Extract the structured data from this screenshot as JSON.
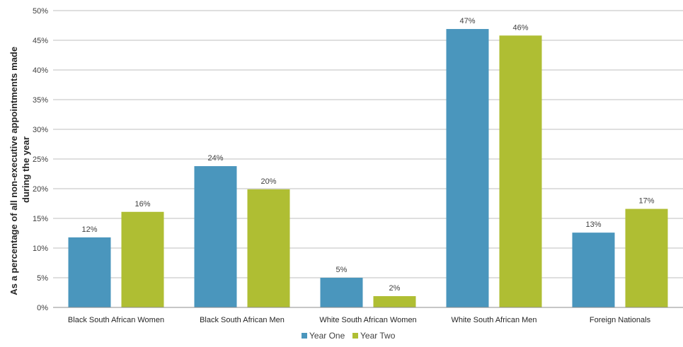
{
  "chart_data": {
    "type": "bar",
    "title": "",
    "xlabel": "",
    "ylabel_lines": [
      "As a percentage of all non-executive appointments made",
      "during the year"
    ],
    "categories": [
      "Black South African Women",
      "Black South African Men",
      "White South African Women",
      "White South African Men",
      "Foreign Nationals"
    ],
    "series": [
      {
        "name": "Year One",
        "color": "#4a96bd",
        "values": [
          11.8,
          23.8,
          5.0,
          46.9,
          12.6
        ],
        "labels": [
          "12%",
          "24%",
          "5%",
          "47%",
          "13%"
        ]
      },
      {
        "name": "Year Two",
        "color": "#afbe33",
        "values": [
          16.1,
          19.9,
          1.9,
          45.8,
          16.6
        ],
        "labels": [
          "16%",
          "20%",
          "2%",
          "46%",
          "17%"
        ]
      }
    ],
    "ylim": [
      0,
      50
    ],
    "yticks": [
      0,
      5,
      10,
      15,
      20,
      25,
      30,
      35,
      40,
      45,
      50
    ],
    "ytick_labels": [
      "0%",
      "5%",
      "10%",
      "15%",
      "20%",
      "25%",
      "30%",
      "35%",
      "40%",
      "45%",
      "50%"
    ],
    "grid": true,
    "legend": "bottom"
  }
}
